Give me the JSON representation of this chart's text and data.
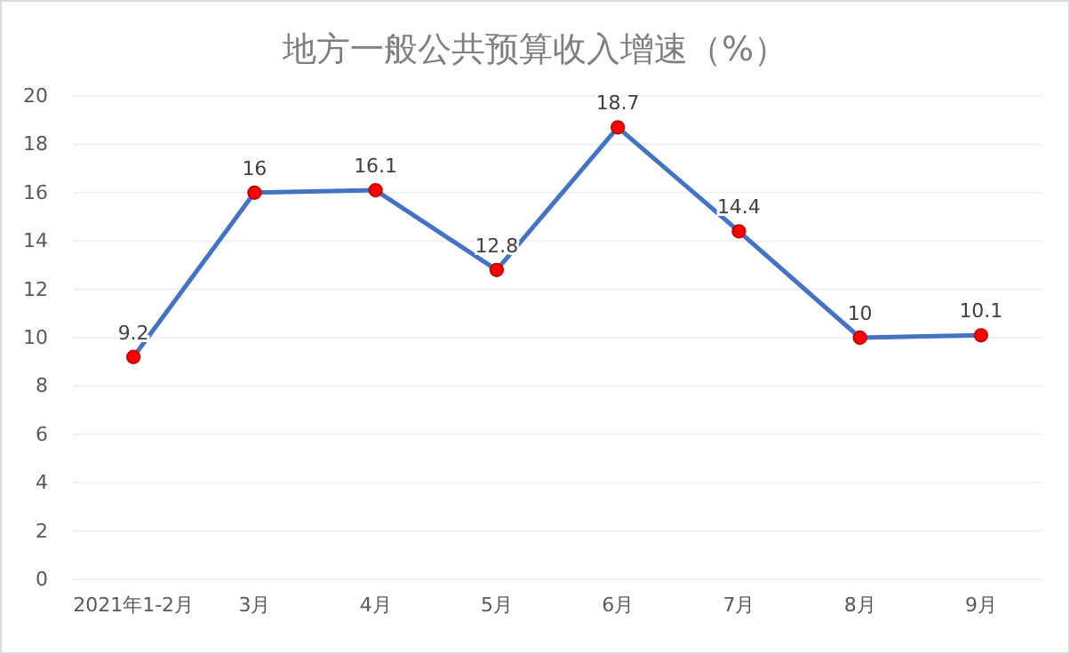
{
  "chart_data": {
    "type": "line",
    "title": "地方一般公共预算收入增速（%）",
    "categories": [
      "2021年1-2月",
      "3月",
      "4月",
      "5月",
      "6月",
      "7月",
      "8月",
      "9月"
    ],
    "series": [
      {
        "color": "#4472c4",
        "values": [
          9.2,
          16,
          16.1,
          12.8,
          18.7,
          14.4,
          10,
          10.1
        ]
      }
    ],
    "ylim": [
      0,
      20
    ],
    "yticks": [
      0,
      2,
      4,
      6,
      8,
      10,
      12,
      14,
      16,
      18,
      20
    ],
    "grid": "y",
    "marker": "circle",
    "line_style": "solid",
    "data_labels": true
  }
}
